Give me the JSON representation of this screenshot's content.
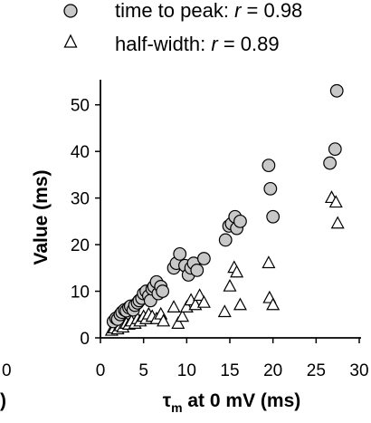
{
  "chart_data": {
    "type": "scatter",
    "ylabel": "Value (ms)",
    "xlabel_symbol": "τ",
    "xlabel_subscript": "m",
    "xlabel_rest": " at 0 mV (ms)",
    "xlim": [
      0,
      30
    ],
    "ylim": [
      0,
      55
    ],
    "xticks": [
      "0",
      "5",
      "10",
      "15",
      "20",
      "25",
      "30"
    ],
    "yticks": [
      "0",
      "10",
      "20",
      "30",
      "40",
      "50"
    ],
    "cut_left_tick": "0",
    "cut_left_paren": ")",
    "legend": [
      {
        "marker": "circle",
        "label_prefix": "time to peak: ",
        "r_symbol": "r",
        "label_suffix": " = 0.98"
      },
      {
        "marker": "triangle",
        "label_prefix": "half-width: ",
        "r_symbol": "r",
        "label_suffix": " = 0.89"
      }
    ],
    "series": [
      {
        "name": "time to peak",
        "marker": "circle",
        "fill": "#c8c8c8",
        "points": [
          [
            1.5,
            3.5
          ],
          [
            1.8,
            4.2
          ],
          [
            2.0,
            4.0
          ],
          [
            2.3,
            5.0
          ],
          [
            2.5,
            5.5
          ],
          [
            2.8,
            6.0
          ],
          [
            3.0,
            5.8
          ],
          [
            3.3,
            6.5
          ],
          [
            3.5,
            6.8
          ],
          [
            3.8,
            6.0
          ],
          [
            4.0,
            7.0
          ],
          [
            4.3,
            7.5
          ],
          [
            4.5,
            8.0
          ],
          [
            4.8,
            8.5
          ],
          [
            5.0,
            9.5
          ],
          [
            5.3,
            10.0
          ],
          [
            5.6,
            9.0
          ],
          [
            5.8,
            8.0
          ],
          [
            6.0,
            10.5
          ],
          [
            6.2,
            11.0
          ],
          [
            6.5,
            12.0
          ],
          [
            6.7,
            9.5
          ],
          [
            7.0,
            11.0
          ],
          [
            7.2,
            10.0
          ],
          [
            8.5,
            15.0
          ],
          [
            8.8,
            16.0
          ],
          [
            9.2,
            18.0
          ],
          [
            9.8,
            15.5
          ],
          [
            10.2,
            13.5
          ],
          [
            10.5,
            15.0
          ],
          [
            10.8,
            16.0
          ],
          [
            11.2,
            14.5
          ],
          [
            12.0,
            17.0
          ],
          [
            14.5,
            21.0
          ],
          [
            14.9,
            24.0
          ],
          [
            15.2,
            24.5
          ],
          [
            15.6,
            26.0
          ],
          [
            15.8,
            23.5
          ],
          [
            16.2,
            25.0
          ],
          [
            19.5,
            37.0
          ],
          [
            19.7,
            32.0
          ],
          [
            20.0,
            26.0
          ],
          [
            26.6,
            37.5
          ],
          [
            27.2,
            40.5
          ],
          [
            27.4,
            53.0
          ]
        ]
      },
      {
        "name": "half-width",
        "marker": "triangle",
        "fill": "#ffffff",
        "points": [
          [
            1.3,
            1.5
          ],
          [
            1.6,
            2.0
          ],
          [
            2.0,
            1.8
          ],
          [
            2.3,
            2.5
          ],
          [
            2.6,
            2.2
          ],
          [
            3.0,
            3.0
          ],
          [
            3.3,
            2.8
          ],
          [
            3.6,
            3.5
          ],
          [
            4.0,
            3.0
          ],
          [
            4.3,
            4.0
          ],
          [
            4.6,
            3.5
          ],
          [
            5.0,
            4.5
          ],
          [
            5.3,
            4.0
          ],
          [
            5.6,
            5.0
          ],
          [
            6.0,
            4.5
          ],
          [
            6.5,
            4.0
          ],
          [
            7.0,
            5.0
          ],
          [
            7.3,
            3.5
          ],
          [
            8.5,
            6.5
          ],
          [
            9.0,
            3.0
          ],
          [
            9.5,
            4.5
          ],
          [
            10.0,
            6.5
          ],
          [
            10.5,
            8.0
          ],
          [
            11.0,
            7.0
          ],
          [
            11.5,
            9.0
          ],
          [
            12.0,
            7.5
          ],
          [
            14.4,
            5.5
          ],
          [
            15.0,
            11.0
          ],
          [
            15.5,
            15.0
          ],
          [
            15.8,
            14.0
          ],
          [
            16.2,
            7.0
          ],
          [
            19.5,
            16.0
          ],
          [
            19.6,
            8.5
          ],
          [
            20.0,
            7.0
          ],
          [
            26.8,
            30.0
          ],
          [
            27.3,
            29.0
          ],
          [
            27.5,
            24.5
          ]
        ]
      }
    ]
  }
}
